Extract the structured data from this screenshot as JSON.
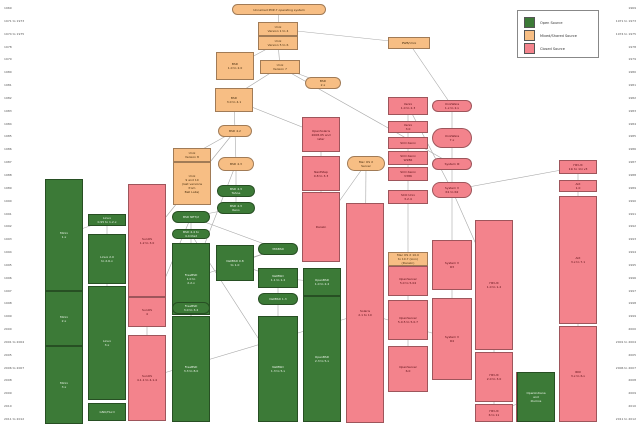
{
  "title": "Unix-like operating system family tree",
  "legend": [
    {
      "label": "Open Source",
      "color": "#3c7a37"
    },
    {
      "label": "Mixed/Shared Source",
      "color": "#f7be84"
    },
    {
      "label": "Closed Source",
      "color": "#f3838c"
    }
  ],
  "year_ticks_left": [
    "1969",
    "1971 to 1973",
    "1974 to 1975",
    "1978",
    "1979",
    "1980",
    "1981",
    "1982",
    "1983",
    "1984",
    "1985",
    "1986",
    "1987",
    "1988",
    "1989",
    "1990",
    "1991",
    "1992",
    "1993",
    "1994",
    "1995",
    "1996",
    "1997",
    "1998",
    "1999",
    "2000",
    "2001 to 2004",
    "2005",
    "2006 to 2007",
    "2008",
    "2009",
    "2010",
    "2011 to 2012"
  ],
  "year_ticks_right": [
    "1969",
    "1971 to 1973",
    "1974 to 1975",
    "1978",
    "1979",
    "1980",
    "1981",
    "1982",
    "1983",
    "1984",
    "1985",
    "1986",
    "1987",
    "1988",
    "1989",
    "1990",
    "1991",
    "1992",
    "1993",
    "1994",
    "1995",
    "1996",
    "1997",
    "1998",
    "1999",
    "2000",
    "2001 to 2004",
    "2005",
    "2006 to 2007",
    "2008",
    "2009",
    "2010",
    "2011 to 2012"
  ],
  "nodes": [
    {
      "id": "unics",
      "lines": [
        "Unnamed PDP-7 operating system"
      ],
      "license": "bsd"
    },
    {
      "id": "unix1",
      "lines": [
        "Unix",
        "Version 1 to 4"
      ],
      "license": "bsd"
    },
    {
      "id": "unix5",
      "lines": [
        "Unix",
        "Version 5 to 6"
      ],
      "license": "bsd"
    },
    {
      "id": "unix7",
      "lines": [
        "Unix",
        "Version 7"
      ],
      "license": "bsd"
    },
    {
      "id": "pwbunix",
      "lines": [
        "PWB/Unix"
      ],
      "license": "bsd"
    },
    {
      "id": "bsd1",
      "lines": [
        "BSD",
        "1.0 to 2.0"
      ],
      "license": "bsd"
    },
    {
      "id": "bsd2",
      "lines": [
        "BSD",
        "2.x"
      ],
      "license": "bsd"
    },
    {
      "id": "unix32v",
      "lines": [
        "Unix/32V"
      ],
      "license": "bsd"
    },
    {
      "id": "bsd3",
      "lines": [
        "BSD",
        "3.0 to 4.1"
      ],
      "license": "bsd"
    },
    {
      "id": "bsd42",
      "lines": [
        "BSD 4.2"
      ],
      "license": "bsd"
    },
    {
      "id": "unix8",
      "lines": [
        "Unix",
        "Version 8"
      ],
      "license": "bsd"
    },
    {
      "id": "unix9",
      "lines": [
        "Unix",
        "9 and 10",
        "(last versions",
        "from",
        "Bell Labs)"
      ],
      "license": "bsd"
    },
    {
      "id": "bsd43",
      "lines": [
        "BSD 4.3"
      ],
      "license": "bsd"
    },
    {
      "id": "bsdtahoe",
      "lines": [
        "BSD 4.3",
        "Tahoe"
      ],
      "license": "gpl"
    },
    {
      "id": "bsdreno",
      "lines": [
        "BSD 4.3",
        "Reno"
      ],
      "license": "gpl"
    },
    {
      "id": "bsdnet2",
      "lines": [
        "BSD NET/2"
      ],
      "license": "gpl"
    },
    {
      "id": "bsd44",
      "lines": [
        "BSD 4.4 to",
        "4.4 lite2"
      ],
      "license": "gpl"
    },
    {
      "id": "b386bsd",
      "lines": [
        "386BSD"
      ],
      "license": "gpl"
    },
    {
      "id": "minix1",
      "lines": [
        "Minix",
        "1.x"
      ],
      "license": "gpl"
    },
    {
      "id": "minix2",
      "lines": [
        "Minix",
        "2.x"
      ],
      "license": "gpl"
    },
    {
      "id": "minix3",
      "lines": [
        "Minix",
        "3.x"
      ],
      "license": "gpl"
    },
    {
      "id": "linux",
      "lines": [
        "Linux",
        "0.95 to 1.2.x"
      ],
      "license": "gpl"
    },
    {
      "id": "linux2",
      "lines": [
        "Linux 2.0",
        "to 2.6.x"
      ],
      "license": "gpl"
    },
    {
      "id": "linux3",
      "lines": [
        "Linux",
        "3.x"
      ],
      "license": "gpl"
    },
    {
      "id": "gnu",
      "lines": [
        "GNU/Hurd"
      ],
      "license": "gpl"
    },
    {
      "id": "freebsd1",
      "lines": [
        "FreeBSD",
        "1.0 to",
        "2.2.x"
      ],
      "license": "gpl"
    },
    {
      "id": "freebsd3",
      "lines": [
        "FreeBSD",
        "3.0 to 3.2"
      ],
      "license": "gpl"
    },
    {
      "id": "freebsd32",
      "lines": [
        "FreeBSD",
        "3.3 to 8.0"
      ],
      "license": "gpl"
    },
    {
      "id": "netbsd08",
      "lines": [
        "NetBSD 0.8",
        "to 1.0"
      ],
      "license": "gpl"
    },
    {
      "id": "netbsd1",
      "lines": [
        "NetBSD",
        "1.1 to 1.2"
      ],
      "license": "gpl"
    },
    {
      "id": "netbsd13",
      "lines": [
        "NetBSD 1.3"
      ],
      "license": "gpl"
    },
    {
      "id": "netbsd14",
      "lines": [
        "NetBSD",
        "1.3 to 5.x"
      ],
      "license": "gpl"
    },
    {
      "id": "openbsd1",
      "lines": [
        "OpenBSD",
        "1.0 to 2.2"
      ],
      "license": "gpl"
    },
    {
      "id": "openbsd23",
      "lines": [
        "OpenBSD",
        "2.3 to 5.x"
      ],
      "license": "gpl"
    },
    {
      "id": "bsdi",
      "lines": [
        "BSD/OS",
        "1.0 to 4.3"
      ],
      "license": "gpl"
    },
    {
      "id": "sunos1",
      "lines": [
        "SunOS",
        "1.2 to 3.0"
      ],
      "license": "closed"
    },
    {
      "id": "sunos4",
      "lines": [
        "SunOS",
        "4"
      ],
      "license": "closed"
    },
    {
      "id": "sunos41",
      "lines": [
        "SunOS",
        "4.1.1 to 4.1.4"
      ],
      "license": "closed"
    },
    {
      "id": "solaris",
      "lines": [
        "Solaris",
        "2.1 to 10"
      ],
      "license": "closed"
    },
    {
      "id": "opensolaris",
      "lines": [
        "OpenSolaris",
        "2008.05 and",
        "later"
      ],
      "license": "closed"
    },
    {
      "id": "nextstep",
      "lines": [
        "NextStep",
        "0.8 to 3.3"
      ],
      "license": "closed"
    },
    {
      "id": "darwin",
      "lines": [
        "Darwin"
      ],
      "license": "closed"
    },
    {
      "id": "macosx",
      "lines": [
        "Mac OS X",
        "Server"
      ],
      "license": "bsd"
    },
    {
      "id": "macos",
      "lines": [
        "Mac OS X 10.0",
        "to 10.7 (Lion)",
        "(Darwin)"
      ],
      "license": "bsd"
    },
    {
      "id": "xenix",
      "lines": [
        "Xenix",
        "1.0 to 2.3"
      ],
      "license": "closed"
    },
    {
      "id": "xenix3",
      "lines": [
        "Xenix",
        "3.0"
      ],
      "license": "closed"
    },
    {
      "id": "scoxenix",
      "lines": [
        "SCO Xenix"
      ],
      "license": "closed"
    },
    {
      "id": "scoxenix2",
      "lines": [
        "SCO Xenix",
        "W286"
      ],
      "license": "closed"
    },
    {
      "id": "scoxenix3",
      "lines": [
        "SCO Xenix",
        "V386"
      ],
      "license": "closed"
    },
    {
      "id": "scounix",
      "lines": [
        "SCO Unix",
        "3.2.4"
      ],
      "license": "closed"
    },
    {
      "id": "openserver",
      "lines": [
        "OpenServer",
        "5.0 to 5.04"
      ],
      "license": "closed"
    },
    {
      "id": "openserver5",
      "lines": [
        "OpenServer",
        "5.0.5 to 5.0.7"
      ],
      "license": "closed"
    },
    {
      "id": "openserver6",
      "lines": [
        "OpenServer",
        "6.0"
      ],
      "license": "closed"
    },
    {
      "id": "unixware",
      "lines": [
        "UnixWare",
        "1.x to 2.x"
      ],
      "license": "closed"
    },
    {
      "id": "unixware7",
      "lines": [
        "UnixWare",
        "7.x"
      ],
      "license": "closed"
    },
    {
      "id": "system3",
      "lines": [
        "System III"
      ],
      "license": "closed"
    },
    {
      "id": "system5",
      "lines": [
        "System V",
        "R1 to R2"
      ],
      "license": "closed"
    },
    {
      "id": "system5r3",
      "lines": [
        "System V",
        "R3"
      ],
      "license": "closed"
    },
    {
      "id": "system5r4",
      "lines": [
        "System V",
        "R4"
      ],
      "license": "closed"
    },
    {
      "id": "hpux1",
      "lines": [
        "HP-UX",
        "1.0 to 1.2"
      ],
      "license": "closed"
    },
    {
      "id": "hpux2",
      "lines": [
        "HP-UX",
        "2.0 to 3.0"
      ],
      "license": "closed"
    },
    {
      "id": "hpux6",
      "lines": [
        "HP-UX",
        "6 to 11"
      ],
      "license": "closed"
    },
    {
      "id": "hpux11",
      "lines": [
        "HP-UX",
        "11i to 11i v3"
      ],
      "license": "closed"
    },
    {
      "id": "aix",
      "lines": [
        "AIX",
        "1.0"
      ],
      "license": "closed"
    },
    {
      "id": "aix3",
      "lines": [
        "AIX",
        "3.x to 7.1"
      ],
      "license": "closed"
    },
    {
      "id": "irix",
      "lines": [
        "IRIX",
        "3.x to 6.x"
      ],
      "license": "closed"
    },
    {
      "id": "tru64",
      "lines": [
        "Tru64 UNIX"
      ],
      "license": "closed"
    },
    {
      "id": "openindiana",
      "lines": [
        "OpenIndiana",
        "and",
        "illumos"
      ],
      "license": "gpl"
    }
  ]
}
